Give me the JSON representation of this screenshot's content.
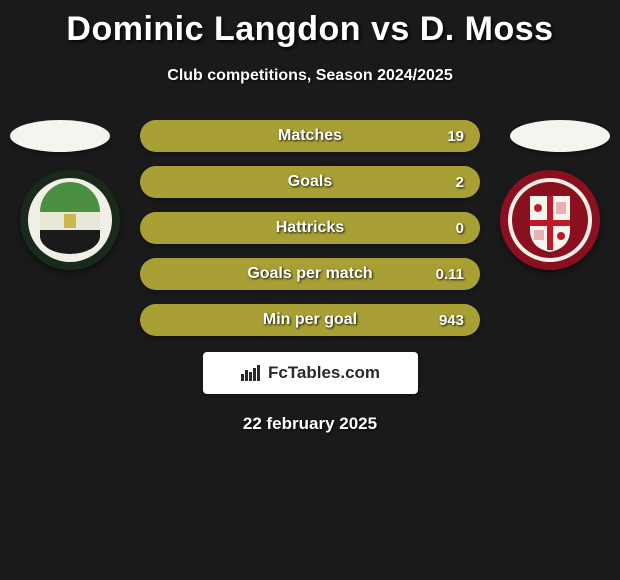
{
  "title": "Dominic Langdon vs D. Moss",
  "subtitle": "Club competitions, Season 2024/2025",
  "date": "22 february 2025",
  "logo_text": "FcTables.com",
  "colors": {
    "background": "#1a1a1a",
    "bar_fill": "#a8a035",
    "bar_track": "#868047",
    "ellipse": "#f5f5f0",
    "text": "#ffffff",
    "logo_box": "#ffffff",
    "logo_text": "#2a2a2a"
  },
  "bars": [
    {
      "label": "Matches",
      "value": "19",
      "fill_pct": 100
    },
    {
      "label": "Goals",
      "value": "2",
      "fill_pct": 100
    },
    {
      "label": "Hattricks",
      "value": "0",
      "fill_pct": 100
    },
    {
      "label": "Goals per match",
      "value": "0.11",
      "fill_pct": 100
    },
    {
      "label": "Min per goal",
      "value": "943",
      "fill_pct": 100
    }
  ],
  "crest_left": {
    "outer": "#1a2a1a",
    "ring": "#f0f0e8",
    "top": "#4a9040",
    "mid": "#e8e8d8",
    "bottom": "#1a1a1a"
  },
  "crest_right": {
    "outer": "#8a1020",
    "ring": "#f0f0e8",
    "shield": "#f5f5f0",
    "cross": "#c01828"
  }
}
